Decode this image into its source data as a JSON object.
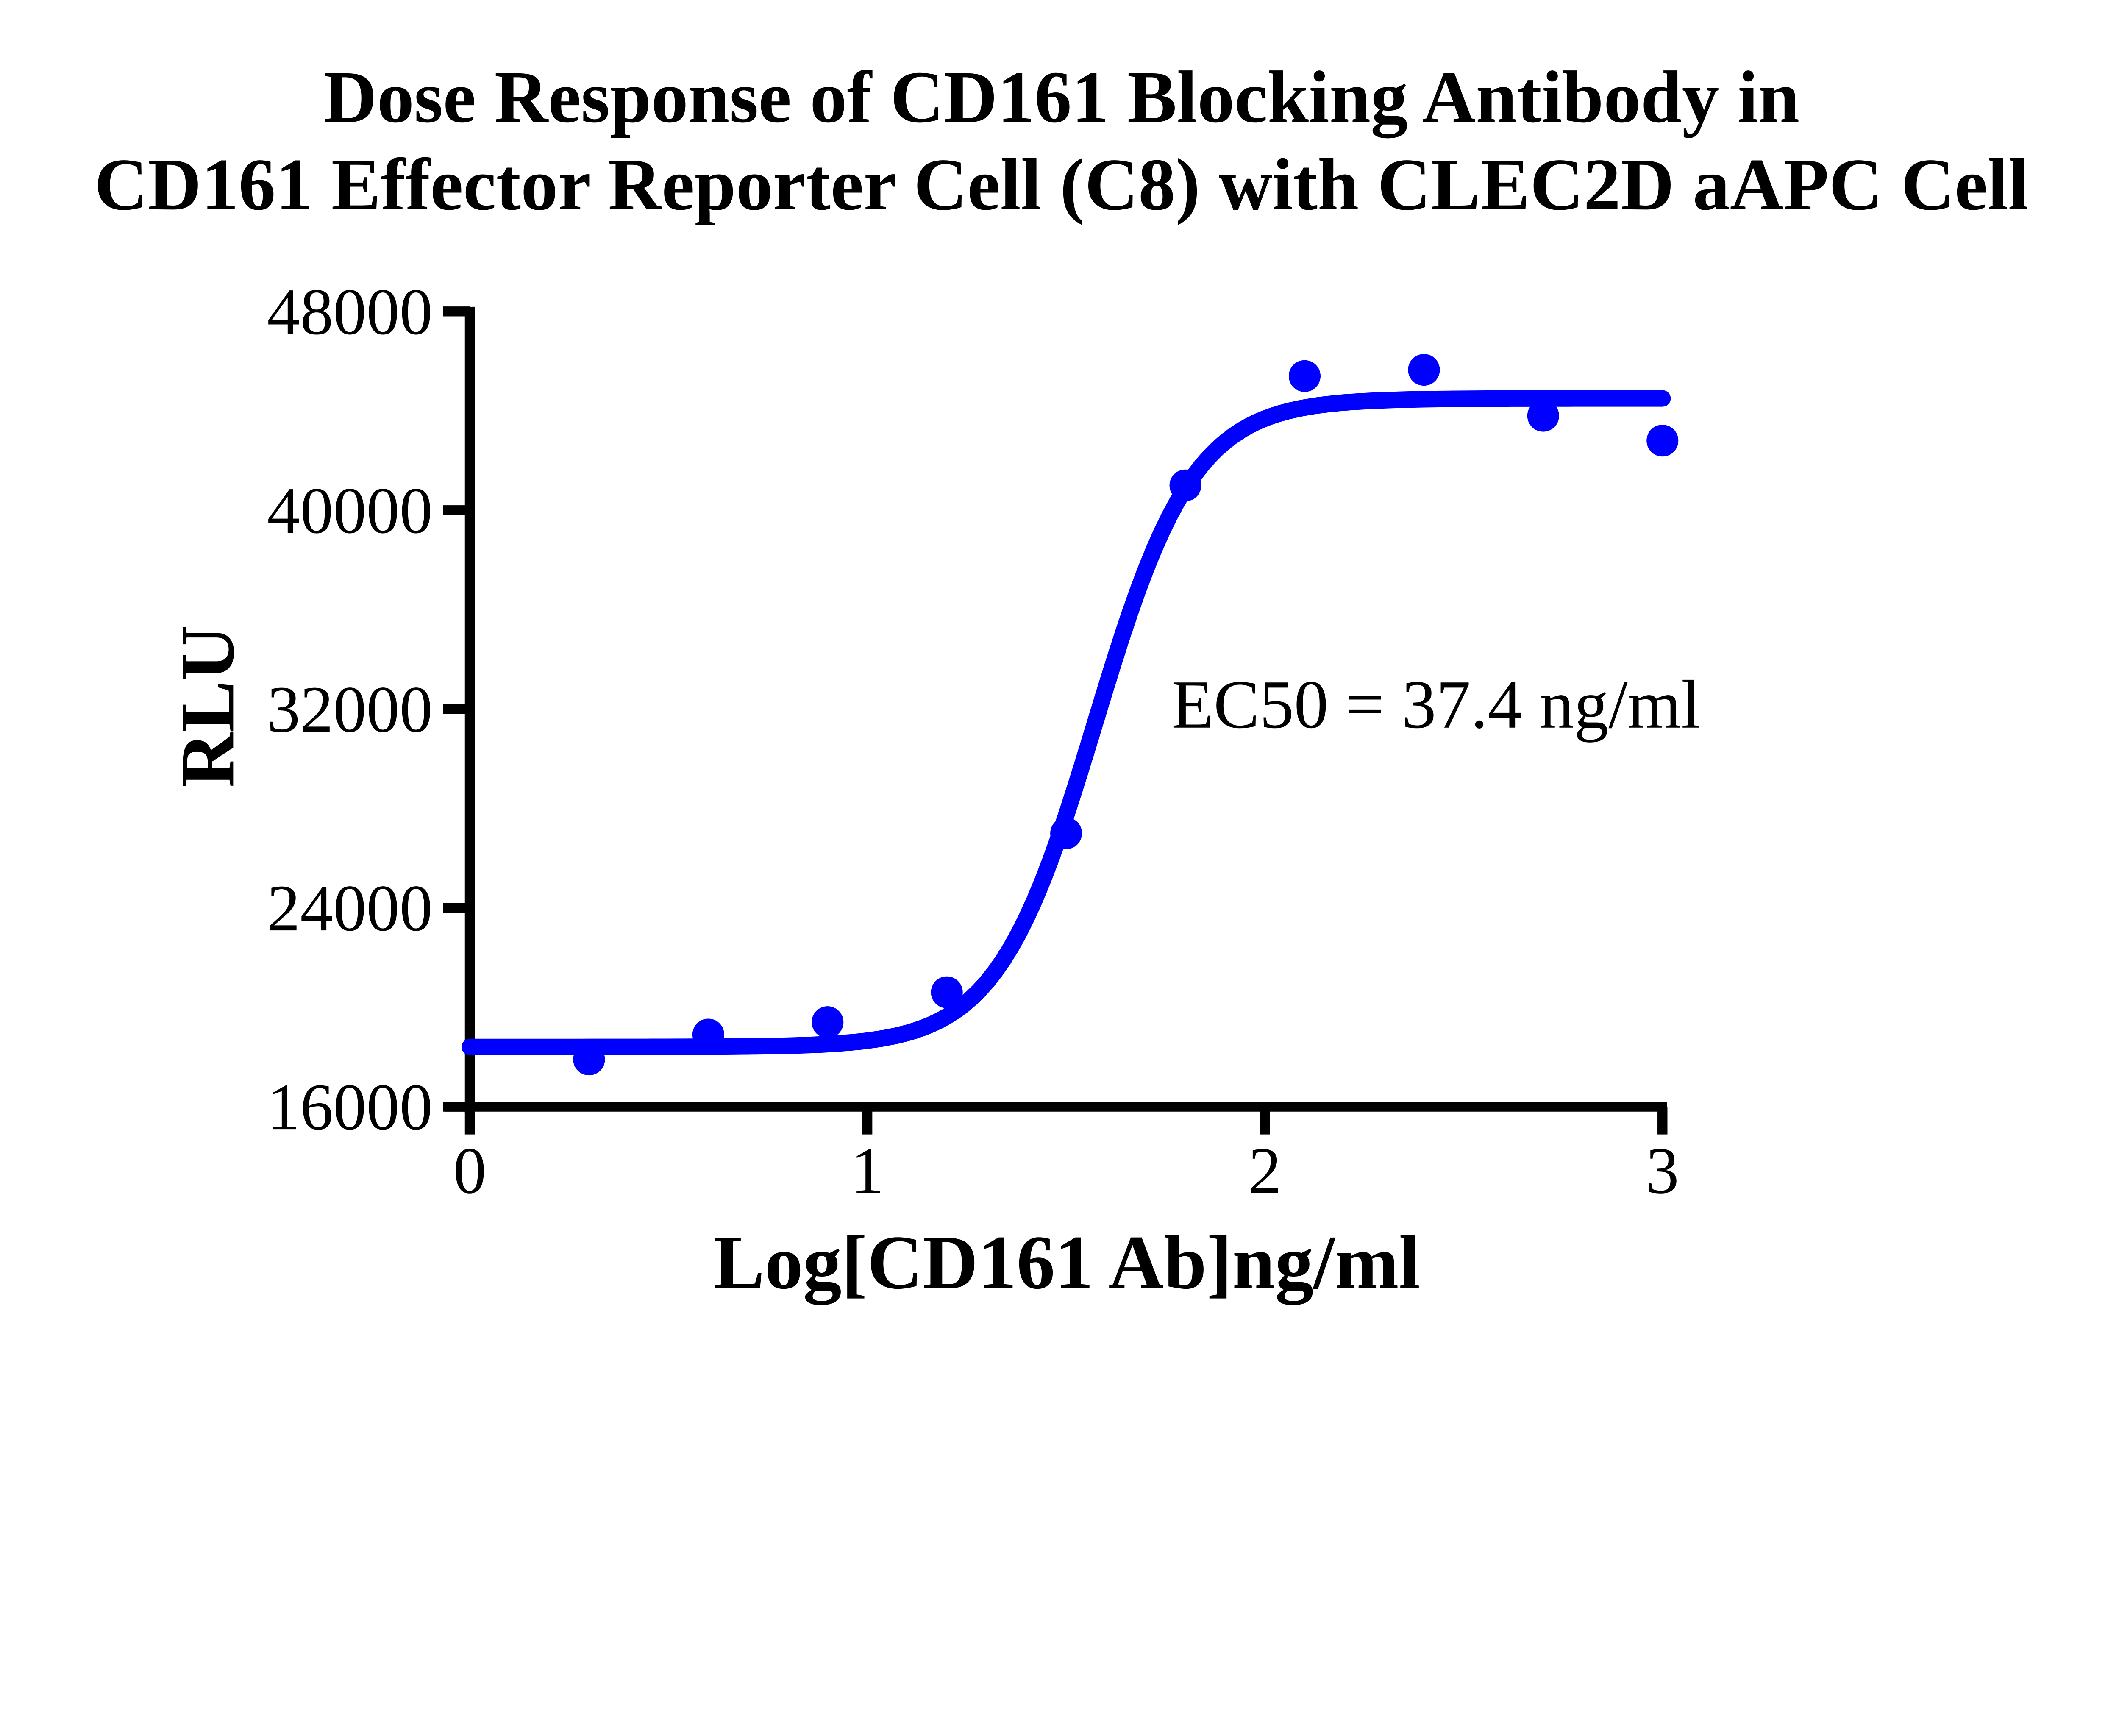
{
  "chart_data": {
    "type": "scatter",
    "title_lines": [
      "Dose Response of CD161 Blocking Antibody in",
      "CD161 Effector Reporter Cell (C8) with CLEC2D aAPC Cell"
    ],
    "xlabel": "Log[CD161 Ab]ng/ml",
    "ylabel": "RLU",
    "annotation": "EC50 = 37.4 ng/ml",
    "series_name": "CD161 blocking antibody",
    "x": [
      0.3,
      0.6,
      0.9,
      1.2,
      1.5,
      1.8,
      2.1,
      2.4,
      2.7,
      3.0
    ],
    "y": [
      17900,
      18900,
      19400,
      20600,
      27000,
      41000,
      45400,
      45650,
      43800,
      42800
    ],
    "x_ticks": [
      0,
      1,
      2,
      3
    ],
    "y_ticks": [
      16000,
      24000,
      32000,
      40000,
      48000
    ],
    "xlim": [
      0,
      3
    ],
    "ylim": [
      16000,
      48000
    ],
    "grid": false,
    "legend_position": "none",
    "fit_curve": {
      "model": "four_parameter_logistic",
      "bottom": 18400,
      "top": 44500,
      "log_ec50": 1.573,
      "ec50_ng_ml": 37.4,
      "hill_slope": 3.5,
      "x_start": 0,
      "x_end": 3
    },
    "colors": {
      "series": "#0000FF",
      "axis": "#000000",
      "text": "#000000",
      "background": "#FFFFFF"
    }
  }
}
